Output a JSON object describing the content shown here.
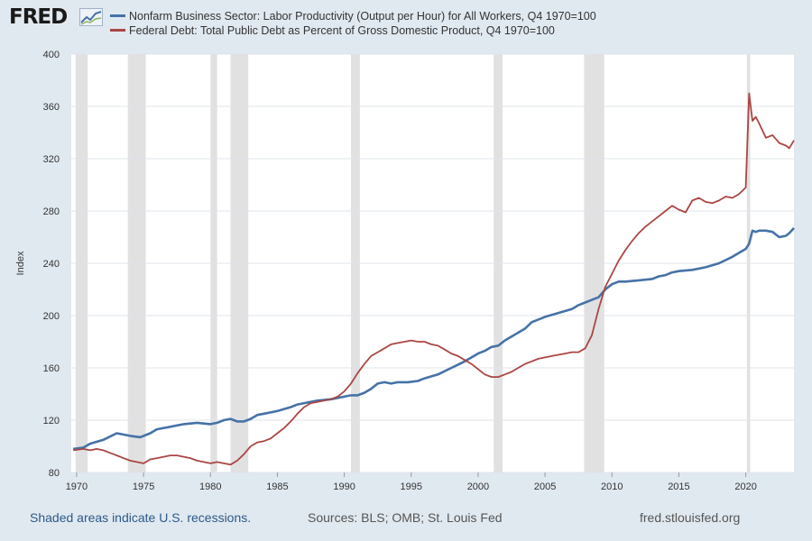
{
  "header": {
    "logo_text": "FRED",
    "logo_icon": "chart-trend-icon"
  },
  "colors": {
    "background": "#e1e9f0",
    "plot_bg": "#ffffff",
    "grid": "#dfe4ea",
    "recession": "#e1e1e1",
    "series1": "#4572a7",
    "series2": "#aa4643"
  },
  "chart_data": {
    "type": "line",
    "title": "",
    "xlabel": "",
    "ylabel": "Index",
    "xlim": [
      1969.6,
      2023.6
    ],
    "ylim": [
      80,
      400
    ],
    "y_ticks": [
      80,
      120,
      160,
      200,
      240,
      280,
      320,
      360,
      400
    ],
    "x_ticks": [
      1970,
      1975,
      1980,
      1985,
      1990,
      1995,
      2000,
      2005,
      2010,
      2015,
      2020
    ],
    "grid": true,
    "legend": "top-left",
    "recessions": [
      [
        1969.92,
        1970.83
      ],
      [
        1973.83,
        1975.17
      ],
      [
        1980.0,
        1980.5
      ],
      [
        1981.5,
        1982.83
      ],
      [
        1990.5,
        1991.17
      ],
      [
        2001.17,
        2001.83
      ],
      [
        2007.92,
        2009.42
      ],
      [
        2020.08,
        2020.33
      ]
    ],
    "series": [
      {
        "name": "Nonfarm Business Sector: Labor Productivity (Output per Hour) for All Workers, Q4 1970=100",
        "color": "#4572a7",
        "points": [
          [
            1969.75,
            98
          ],
          [
            1970.5,
            99
          ],
          [
            1971,
            102
          ],
          [
            1972,
            105
          ],
          [
            1973,
            110
          ],
          [
            1974,
            108
          ],
          [
            1974.75,
            107
          ],
          [
            1975.5,
            110
          ],
          [
            1976,
            113
          ],
          [
            1977,
            115
          ],
          [
            1978,
            117
          ],
          [
            1979,
            118
          ],
          [
            1980,
            117
          ],
          [
            1980.5,
            118
          ],
          [
            1981,
            120
          ],
          [
            1981.5,
            121
          ],
          [
            1982,
            119
          ],
          [
            1982.5,
            119
          ],
          [
            1983,
            121
          ],
          [
            1983.5,
            124
          ],
          [
            1984,
            125
          ],
          [
            1985,
            127
          ],
          [
            1986,
            130
          ],
          [
            1986.5,
            132
          ],
          [
            1987,
            133
          ],
          [
            1988,
            135
          ],
          [
            1989,
            136
          ],
          [
            1990,
            138
          ],
          [
            1990.5,
            139
          ],
          [
            1991,
            139
          ],
          [
            1991.5,
            141
          ],
          [
            1992,
            144
          ],
          [
            1992.5,
            148
          ],
          [
            1993,
            149
          ],
          [
            1993.5,
            148
          ],
          [
            1994,
            149
          ],
          [
            1994.75,
            149
          ],
          [
            1995.5,
            150
          ],
          [
            1996,
            152
          ],
          [
            1997,
            155
          ],
          [
            1998,
            160
          ],
          [
            1999,
            165
          ],
          [
            2000,
            171
          ],
          [
            2000.5,
            173
          ],
          [
            2001,
            176
          ],
          [
            2001.5,
            177
          ],
          [
            2002,
            181
          ],
          [
            2002.5,
            184
          ],
          [
            2003,
            187
          ],
          [
            2003.5,
            190
          ],
          [
            2004,
            195
          ],
          [
            2004.5,
            197
          ],
          [
            2005,
            199
          ],
          [
            2006,
            202
          ],
          [
            2007,
            205
          ],
          [
            2007.5,
            208
          ],
          [
            2008,
            210
          ],
          [
            2008.5,
            212
          ],
          [
            2009,
            214
          ],
          [
            2009.5,
            220
          ],
          [
            2010,
            224
          ],
          [
            2010.5,
            226
          ],
          [
            2011,
            226
          ],
          [
            2012,
            227
          ],
          [
            2013,
            228
          ],
          [
            2013.5,
            230
          ],
          [
            2014,
            231
          ],
          [
            2014.5,
            233
          ],
          [
            2015,
            234
          ],
          [
            2016,
            235
          ],
          [
            2017,
            237
          ],
          [
            2018,
            240
          ],
          [
            2019,
            245
          ],
          [
            2019.5,
            248
          ],
          [
            2020,
            251
          ],
          [
            2020.25,
            255
          ],
          [
            2020.5,
            265
          ],
          [
            2020.75,
            264
          ],
          [
            2021,
            265
          ],
          [
            2021.5,
            265
          ],
          [
            2022,
            264
          ],
          [
            2022.25,
            262
          ],
          [
            2022.5,
            260
          ],
          [
            2023,
            261
          ],
          [
            2023.25,
            263
          ],
          [
            2023.6,
            267
          ]
        ]
      },
      {
        "name": "Federal Debt: Total Public Debt as Percent of Gross Domestic Product, Q4 1970=100",
        "color": "#aa4643",
        "points": [
          [
            1969.75,
            97
          ],
          [
            1970.5,
            98
          ],
          [
            1971,
            97
          ],
          [
            1971.5,
            98
          ],
          [
            1972,
            97
          ],
          [
            1972.5,
            95
          ],
          [
            1973,
            93
          ],
          [
            1973.5,
            91
          ],
          [
            1974,
            89
          ],
          [
            1974.5,
            88
          ],
          [
            1975,
            87
          ],
          [
            1975.5,
            90
          ],
          [
            1976,
            91
          ],
          [
            1976.5,
            92
          ],
          [
            1977,
            93
          ],
          [
            1977.5,
            93
          ],
          [
            1978,
            92
          ],
          [
            1978.5,
            91
          ],
          [
            1979,
            89
          ],
          [
            1979.5,
            88
          ],
          [
            1980,
            87
          ],
          [
            1980.5,
            88
          ],
          [
            1981,
            87
          ],
          [
            1981.5,
            86
          ],
          [
            1982,
            89
          ],
          [
            1982.5,
            94
          ],
          [
            1983,
            100
          ],
          [
            1983.5,
            103
          ],
          [
            1984,
            104
          ],
          [
            1984.5,
            106
          ],
          [
            1985,
            110
          ],
          [
            1985.5,
            114
          ],
          [
            1986,
            119
          ],
          [
            1986.5,
            125
          ],
          [
            1987,
            130
          ],
          [
            1987.5,
            133
          ],
          [
            1988,
            134
          ],
          [
            1988.5,
            135
          ],
          [
            1989,
            136
          ],
          [
            1989.5,
            138
          ],
          [
            1990,
            142
          ],
          [
            1990.5,
            148
          ],
          [
            1991,
            156
          ],
          [
            1991.5,
            163
          ],
          [
            1992,
            169
          ],
          [
            1992.5,
            172
          ],
          [
            1993,
            175
          ],
          [
            1993.5,
            178
          ],
          [
            1994,
            179
          ],
          [
            1994.5,
            180
          ],
          [
            1995,
            181
          ],
          [
            1995.5,
            180
          ],
          [
            1996,
            180
          ],
          [
            1996.5,
            178
          ],
          [
            1997,
            177
          ],
          [
            1997.5,
            174
          ],
          [
            1998,
            171
          ],
          [
            1998.5,
            169
          ],
          [
            1999,
            166
          ],
          [
            1999.5,
            163
          ],
          [
            2000,
            159
          ],
          [
            2000.5,
            155
          ],
          [
            2001,
            153
          ],
          [
            2001.5,
            153
          ],
          [
            2002,
            155
          ],
          [
            2002.5,
            157
          ],
          [
            2003,
            160
          ],
          [
            2003.5,
            163
          ],
          [
            2004,
            165
          ],
          [
            2004.5,
            167
          ],
          [
            2005,
            168
          ],
          [
            2005.5,
            169
          ],
          [
            2006,
            170
          ],
          [
            2006.5,
            171
          ],
          [
            2007,
            172
          ],
          [
            2007.5,
            172
          ],
          [
            2008,
            175
          ],
          [
            2008.5,
            185
          ],
          [
            2009,
            205
          ],
          [
            2009.5,
            222
          ],
          [
            2010,
            232
          ],
          [
            2010.5,
            242
          ],
          [
            2011,
            250
          ],
          [
            2011.5,
            257
          ],
          [
            2012,
            263
          ],
          [
            2012.5,
            268
          ],
          [
            2013,
            272
          ],
          [
            2013.5,
            276
          ],
          [
            2014,
            280
          ],
          [
            2014.5,
            284
          ],
          [
            2015,
            281
          ],
          [
            2015.5,
            279
          ],
          [
            2016,
            288
          ],
          [
            2016.5,
            290
          ],
          [
            2017,
            287
          ],
          [
            2017.5,
            286
          ],
          [
            2018,
            288
          ],
          [
            2018.5,
            291
          ],
          [
            2019,
            290
          ],
          [
            2019.5,
            293
          ],
          [
            2020,
            298
          ],
          [
            2020.25,
            370
          ],
          [
            2020.5,
            349
          ],
          [
            2020.75,
            352
          ],
          [
            2021,
            347
          ],
          [
            2021.5,
            336
          ],
          [
            2022,
            338
          ],
          [
            2022.5,
            332
          ],
          [
            2023,
            330
          ],
          [
            2023.25,
            328
          ],
          [
            2023.6,
            334
          ]
        ]
      }
    ]
  },
  "footer": {
    "note": "Shaded areas indicate U.S. recessions.",
    "sources": "Sources: BLS; OMB; St. Louis Fed",
    "url": "fred.stlouisfed.org"
  }
}
